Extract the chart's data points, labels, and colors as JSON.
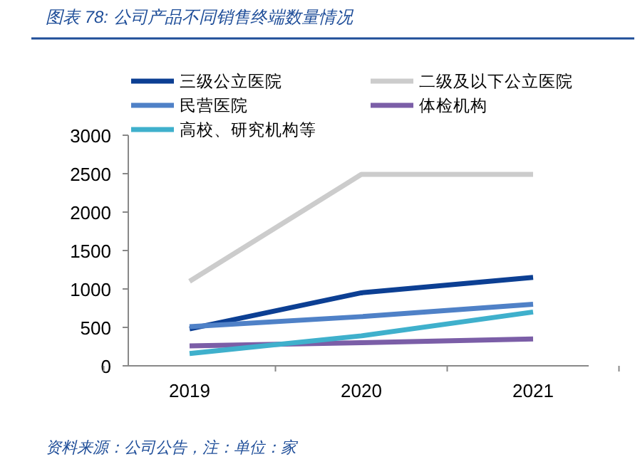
{
  "chart_data": {
    "type": "line",
    "title": "图表 78:  公司产品不同销售终端数量情况",
    "categories": [
      "2019",
      "2020",
      "2021"
    ],
    "series": [
      {
        "name": "三级公立医院",
        "color": "#0c3f93",
        "values": [
          480,
          950,
          1150
        ]
      },
      {
        "name": "二级及以下公立医院",
        "color": "#cccccc",
        "values": [
          1100,
          2490,
          2490
        ]
      },
      {
        "name": "民营医院",
        "color": "#4f81c7",
        "values": [
          510,
          640,
          800
        ]
      },
      {
        "name": "体检机构",
        "color": "#7b5ea7",
        "values": [
          260,
          300,
          350
        ]
      },
      {
        "name": "高校、研究机构等",
        "color": "#3fb0cc",
        "values": [
          160,
          390,
          700
        ]
      }
    ],
    "ylim": [
      0,
      3000
    ],
    "yticks": [
      0,
      500,
      1000,
      1500,
      2000,
      2500,
      3000
    ],
    "grid": false,
    "legend": "top",
    "marker": "none",
    "line_style": "solid",
    "annotations": [
      "资料来源：公司公告，注：单位：家"
    ]
  }
}
